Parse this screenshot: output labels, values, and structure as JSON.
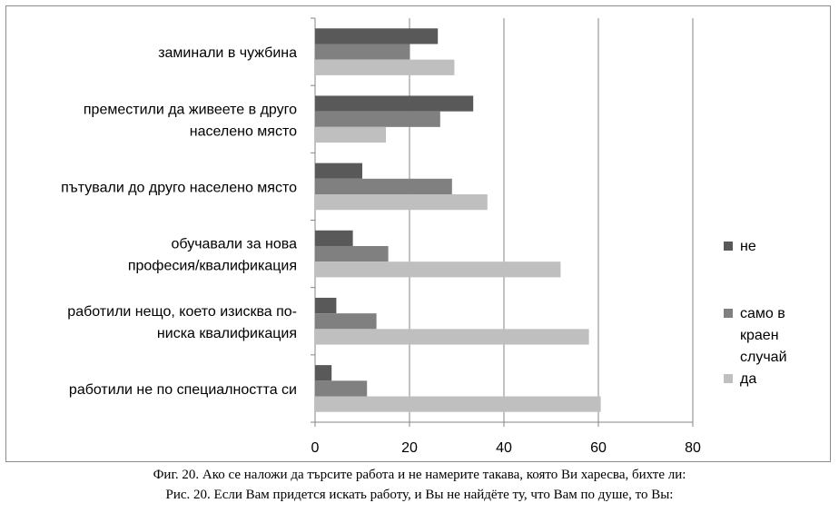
{
  "chart_data": {
    "type": "bar",
    "orientation": "horizontal",
    "categories": [
      [
        "заминали в чужбина"
      ],
      [
        "преместили да живеете в друго",
        "населено място"
      ],
      [
        "пътували до друго населено място"
      ],
      [
        "обучавали за нова",
        "професия/квалификация"
      ],
      [
        "работили нещо, което изисква по-",
        "ниска квалификация"
      ],
      [
        "работили не по специалността си"
      ]
    ],
    "series": [
      {
        "name": "не",
        "color": "#595959",
        "values": [
          26,
          33.5,
          10,
          8,
          4.5,
          3.5
        ]
      },
      {
        "name": "само в краен случай",
        "legend_lines": [
          "само в",
          "краен",
          "случай"
        ],
        "color": "#808080",
        "values": [
          20,
          26.5,
          29,
          15.5,
          13,
          11
        ]
      },
      {
        "name": "да",
        "color": "#bfbfbf",
        "values": [
          29.5,
          15,
          36.5,
          52,
          58,
          60.5
        ]
      }
    ],
    "xlim": [
      0,
      80
    ],
    "x_ticks": [
      "0",
      "20",
      "40",
      "60",
      "80"
    ],
    "grid": true,
    "legend_position": "right"
  },
  "captions": {
    "line1": "Фиг. 20. Ако се наложи да търсите работа и не намерите такава, която Ви харесва, бихте ли:",
    "line2": "Рис. 20. Если Вам придется искать работу, и Вы не найдёте ту, что Вам по душе, то Вы:"
  }
}
